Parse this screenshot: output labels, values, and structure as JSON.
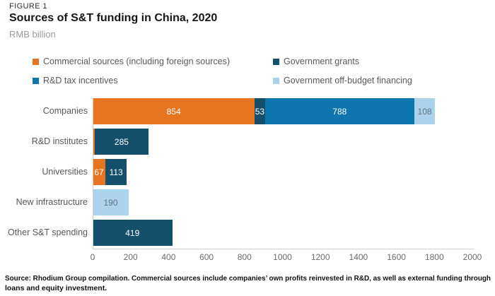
{
  "header": {
    "figure_label": "FIGURE 1",
    "title": "Sources of S&T funding in China, 2020",
    "unit": "RMB billion"
  },
  "source": {
    "line1": "Source: Rhodium Group compilation. Commercial sources include companies’ own profits reinvested in R&D, as well as external funding through",
    "line2": "loans and equity investment."
  },
  "colors": {
    "orange": "#E5761F",
    "dark_blue": "#14506B",
    "blue": "#0E76AD",
    "light_blue": "#ABD4EC",
    "axis_line": "#CFCFCF",
    "label_gray": "#595959"
  },
  "chart_data": {
    "type": "bar",
    "orientation": "horizontal",
    "stacked": true,
    "title": "Sources of S&T funding in China, 2020",
    "unit_label": "RMB billion",
    "categories": [
      "Companies",
      "R&D institutes",
      "Universities",
      "New infrastructure",
      "Other S&T spending"
    ],
    "series": [
      {
        "name": "Commercial sources (including foreign sources)",
        "color": "#E5761F",
        "label_color": "#ffffff",
        "values": [
          854,
          10,
          67,
          0,
          0
        ],
        "bar_labels": [
          "854",
          "",
          "67",
          "",
          ""
        ]
      },
      {
        "name": "Government grants",
        "color": "#14506B",
        "label_color": "#ffffff",
        "values": [
          53,
          285,
          113,
          0,
          419
        ],
        "bar_labels": [
          "53",
          "285",
          "113",
          "",
          "419"
        ]
      },
      {
        "name": "R&D tax incentives",
        "color": "#0E76AD",
        "label_color": "#ffffff",
        "values": [
          788,
          0,
          0,
          0,
          0
        ],
        "bar_labels": [
          "788",
          "",
          "",
          "",
          ""
        ]
      },
      {
        "name": "Government off-budget financing",
        "color": "#ABD4EC",
        "label_color": "#5F7280",
        "values": [
          108,
          0,
          0,
          190,
          0
        ],
        "bar_labels": [
          "108",
          "",
          "",
          "190",
          ""
        ]
      }
    ],
    "xlim": [
      0,
      2000
    ],
    "xticks": [
      0,
      200,
      400,
      600,
      800,
      1000,
      1200,
      1400,
      1600,
      1800,
      2000
    ],
    "grid": false,
    "legend_position": "top",
    "note": "R&D institutes bar also shows a thin unlabeled commercial-sources sliver (~10, estimated from pixel width)"
  }
}
